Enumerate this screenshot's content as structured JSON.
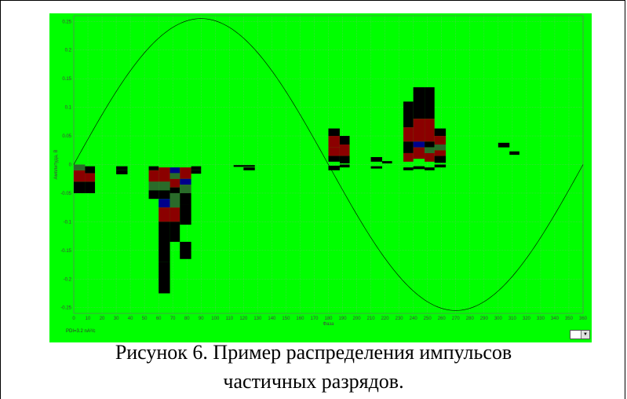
{
  "chart_data": {
    "type": "heatmap",
    "xlabel": "Фаза",
    "ylabel": "Амплитуда, В",
    "xlim": [
      0,
      360
    ],
    "ylim": [
      -0.26,
      0.26
    ],
    "x_ticks": [
      0,
      10,
      20,
      30,
      40,
      50,
      60,
      70,
      80,
      90,
      100,
      110,
      120,
      130,
      140,
      150,
      160,
      170,
      180,
      190,
      200,
      210,
      220,
      230,
      240,
      250,
      260,
      270,
      280,
      290,
      300,
      310,
      320,
      330,
      340,
      350,
      360
    ],
    "y_ticks": [
      0.25,
      0.2,
      0.15,
      0.1,
      0.05,
      0,
      -0.05,
      -0.1,
      -0.15,
      -0.2,
      -0.25
    ],
    "y_tick_labels": [
      "0.25",
      "0.2",
      "0.15",
      "0.1",
      "0.05",
      "0",
      "-0.05",
      "-0.1",
      "-0.15",
      "-0.2",
      "-0.25"
    ],
    "grid": true,
    "background_color": "#00ff00",
    "reference_curve": {
      "type": "sine",
      "amplitude": 0.255,
      "period_deg": 360
    },
    "pulse_cells": [
      {
        "x": [
          0,
          8
        ],
        "y": [
          -0.05,
          -0.03
        ],
        "color": "#000000"
      },
      {
        "x": [
          0,
          8
        ],
        "y": [
          -0.03,
          -0.01
        ],
        "color": "#8b0000"
      },
      {
        "x": [
          0,
          8
        ],
        "y": [
          -0.01,
          0.0
        ],
        "color": "#2a6b2a"
      },
      {
        "x": [
          8,
          15
        ],
        "y": [
          -0.05,
          -0.03
        ],
        "color": "#000000"
      },
      {
        "x": [
          8,
          15
        ],
        "y": [
          -0.03,
          -0.015
        ],
        "color": "#8b0000"
      },
      {
        "x": [
          8,
          15
        ],
        "y": [
          -0.015,
          -0.003
        ],
        "color": "#000000"
      },
      {
        "x": [
          30,
          38
        ],
        "y": [
          -0.01,
          -0.003
        ],
        "color": "#000000"
      },
      {
        "x": [
          30,
          38
        ],
        "y": [
          -0.017,
          -0.01
        ],
        "color": "#000000"
      },
      {
        "x": [
          53,
          60
        ],
        "y": [
          -0.03,
          -0.01
        ],
        "color": "#8b0000"
      },
      {
        "x": [
          53,
          60
        ],
        "y": [
          -0.045,
          -0.03
        ],
        "color": "#2a6b2a"
      },
      {
        "x": [
          53,
          60
        ],
        "y": [
          -0.06,
          -0.045
        ],
        "color": "#000000"
      },
      {
        "x": [
          53,
          60
        ],
        "y": [
          -0.01,
          -0.003
        ],
        "color": "#000000"
      },
      {
        "x": [
          60,
          68
        ],
        "y": [
          -0.03,
          -0.005
        ],
        "color": "#8b0000"
      },
      {
        "x": [
          60,
          68
        ],
        "y": [
          -0.045,
          -0.03
        ],
        "color": "#2a6b2a"
      },
      {
        "x": [
          60,
          68
        ],
        "y": [
          -0.06,
          -0.045
        ],
        "color": "#000000"
      },
      {
        "x": [
          60,
          68
        ],
        "y": [
          -0.075,
          -0.06
        ],
        "color": "#00008b"
      },
      {
        "x": [
          60,
          68
        ],
        "y": [
          -0.1,
          -0.075
        ],
        "color": "#8b0000"
      },
      {
        "x": [
          60,
          68
        ],
        "y": [
          -0.17,
          -0.1
        ],
        "color": "#000000"
      },
      {
        "x": [
          60,
          68
        ],
        "y": [
          -0.225,
          -0.17
        ],
        "color": "#000000"
      },
      {
        "x": [
          68,
          75
        ],
        "y": [
          -0.015,
          -0.005
        ],
        "color": "#00008b"
      },
      {
        "x": [
          68,
          75
        ],
        "y": [
          -0.025,
          -0.015
        ],
        "color": "#2a6b2a"
      },
      {
        "x": [
          68,
          75
        ],
        "y": [
          -0.04,
          -0.025
        ],
        "color": "#8b0000"
      },
      {
        "x": [
          68,
          75
        ],
        "y": [
          -0.05,
          -0.04
        ],
        "color": "#000000"
      },
      {
        "x": [
          68,
          75
        ],
        "y": [
          -0.075,
          -0.05
        ],
        "color": "#2a6b2a"
      },
      {
        "x": [
          68,
          75
        ],
        "y": [
          -0.1,
          -0.075
        ],
        "color": "#8b0000"
      },
      {
        "x": [
          68,
          75
        ],
        "y": [
          -0.135,
          -0.1
        ],
        "color": "#000000"
      },
      {
        "x": [
          75,
          83
        ],
        "y": [
          -0.025,
          -0.005
        ],
        "color": "#8b0000"
      },
      {
        "x": [
          75,
          83
        ],
        "y": [
          -0.035,
          -0.025
        ],
        "color": "#00008b"
      },
      {
        "x": [
          75,
          83
        ],
        "y": [
          -0.05,
          -0.035
        ],
        "color": "#2a6b2a"
      },
      {
        "x": [
          75,
          83
        ],
        "y": [
          -0.07,
          -0.05
        ],
        "color": "#000000"
      },
      {
        "x": [
          75,
          83
        ],
        "y": [
          -0.105,
          -0.07
        ],
        "color": "#000000"
      },
      {
        "x": [
          75,
          83
        ],
        "y": [
          -0.165,
          -0.135
        ],
        "color": "#000000"
      },
      {
        "x": [
          83,
          90
        ],
        "y": [
          -0.01,
          -0.003
        ],
        "color": "#000000"
      },
      {
        "x": [
          83,
          90
        ],
        "y": [
          -0.016,
          -0.01
        ],
        "color": "#000000"
      },
      {
        "x": [
          113,
          128
        ],
        "y": [
          -0.004,
          -0.001
        ],
        "color": "#000000"
      },
      {
        "x": [
          120,
          128
        ],
        "y": [
          -0.01,
          -0.005
        ],
        "color": "#000000"
      },
      {
        "x": [
          180,
          188
        ],
        "y": [
          0.03,
          0.05
        ],
        "color": "#8b0000"
      },
      {
        "x": [
          180,
          188
        ],
        "y": [
          0.05,
          0.063
        ],
        "color": "#000000"
      },
      {
        "x": [
          180,
          188
        ],
        "y": [
          0.015,
          0.03
        ],
        "color": "#8b0000"
      },
      {
        "x": [
          180,
          188
        ],
        "y": [
          0.005,
          0.015
        ],
        "color": "#000000"
      },
      {
        "x": [
          180,
          188
        ],
        "y": [
          -0.01,
          -0.002
        ],
        "color": "#000000"
      },
      {
        "x": [
          188,
          195
        ],
        "y": [
          0.035,
          0.05
        ],
        "color": "#000000"
      },
      {
        "x": [
          188,
          195
        ],
        "y": [
          0.015,
          0.035
        ],
        "color": "#8b0000"
      },
      {
        "x": [
          188,
          195
        ],
        "y": [
          0.002,
          0.015
        ],
        "color": "#000000"
      },
      {
        "x": [
          188,
          195
        ],
        "y": [
          -0.005,
          0.0
        ],
        "color": "#000000"
      },
      {
        "x": [
          210,
          218
        ],
        "y": [
          0.005,
          0.013
        ],
        "color": "#000000"
      },
      {
        "x": [
          210,
          218
        ],
        "y": [
          -0.007,
          -0.003
        ],
        "color": "#000000"
      },
      {
        "x": [
          218,
          225
        ],
        "y": [
          0.002,
          0.006
        ],
        "color": "#000000"
      },
      {
        "x": [
          233,
          240
        ],
        "y": [
          0.065,
          0.11
        ],
        "color": "#000000"
      },
      {
        "x": [
          233,
          240
        ],
        "y": [
          0.04,
          0.065
        ],
        "color": "#8b0000"
      },
      {
        "x": [
          233,
          240
        ],
        "y": [
          0.02,
          0.04
        ],
        "color": "#000000"
      },
      {
        "x": [
          233,
          240
        ],
        "y": [
          0.005,
          0.02
        ],
        "color": "#8b0000"
      },
      {
        "x": [
          233,
          240
        ],
        "y": [
          -0.01,
          -0.005
        ],
        "color": "#000000"
      },
      {
        "x": [
          240,
          248
        ],
        "y": [
          0.08,
          0.135
        ],
        "color": "#000000"
      },
      {
        "x": [
          240,
          248
        ],
        "y": [
          0.04,
          0.08
        ],
        "color": "#8b0000"
      },
      {
        "x": [
          240,
          248
        ],
        "y": [
          0.03,
          0.04
        ],
        "color": "#00008b"
      },
      {
        "x": [
          240,
          248
        ],
        "y": [
          0.01,
          0.03
        ],
        "color": "#8b0000"
      },
      {
        "x": [
          240,
          248
        ],
        "y": [
          -0.008,
          -0.003
        ],
        "color": "#000000"
      },
      {
        "x": [
          248,
          255
        ],
        "y": [
          0.08,
          0.135
        ],
        "color": "#000000"
      },
      {
        "x": [
          248,
          255
        ],
        "y": [
          0.04,
          0.08
        ],
        "color": "#8b0000"
      },
      {
        "x": [
          248,
          255
        ],
        "y": [
          0.03,
          0.04
        ],
        "color": "#000000"
      },
      {
        "x": [
          248,
          255
        ],
        "y": [
          0.02,
          0.03
        ],
        "color": "#2a6b2a"
      },
      {
        "x": [
          248,
          255
        ],
        "y": [
          0.005,
          0.02
        ],
        "color": "#8b0000"
      },
      {
        "x": [
          248,
          255
        ],
        "y": [
          -0.01,
          -0.005
        ],
        "color": "#000000"
      },
      {
        "x": [
          255,
          263
        ],
        "y": [
          0.05,
          0.063
        ],
        "color": "#000000"
      },
      {
        "x": [
          255,
          263
        ],
        "y": [
          0.035,
          0.05
        ],
        "color": "#8b0000"
      },
      {
        "x": [
          255,
          263
        ],
        "y": [
          0.025,
          0.035
        ],
        "color": "#2a6b2a"
      },
      {
        "x": [
          255,
          263
        ],
        "y": [
          0.015,
          0.025
        ],
        "color": "#8b0000"
      },
      {
        "x": [
          255,
          263
        ],
        "y": [
          0.003,
          0.015
        ],
        "color": "#000000"
      },
      {
        "x": [
          255,
          263
        ],
        "y": [
          -0.005,
          0.0
        ],
        "color": "#000000"
      },
      {
        "x": [
          300,
          308
        ],
        "y": [
          0.03,
          0.038
        ],
        "color": "#000000"
      },
      {
        "x": [
          308,
          315
        ],
        "y": [
          0.017,
          0.023
        ],
        "color": "#000000"
      }
    ]
  },
  "footer": {
    "pdi_label": "PDI=3.2 nA²/c",
    "dropdown_arrow": "▼"
  },
  "caption": {
    "line1": "Рисунок 6. Пример распределения импульсов",
    "line2": "частичных разрядов."
  }
}
